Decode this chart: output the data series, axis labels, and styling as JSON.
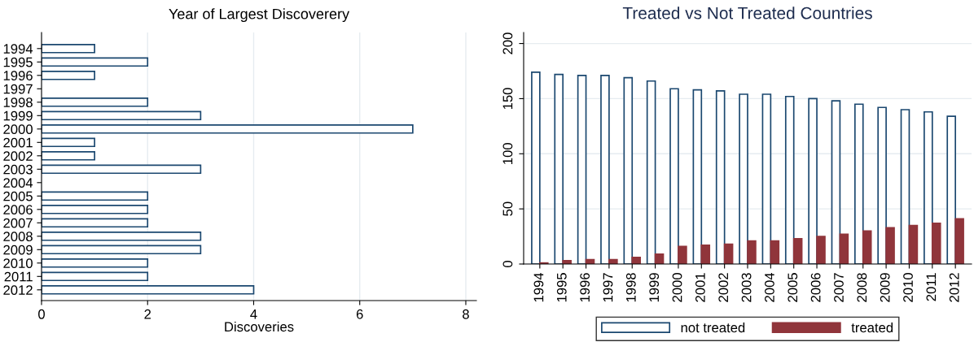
{
  "chart_data": [
    {
      "type": "bar",
      "orientation": "horizontal",
      "title": "Year of Largest Discoverery",
      "xlabel": "Discoveries",
      "categories": [
        "1994",
        "1995",
        "1996",
        "1997",
        "1998",
        "1999",
        "2000",
        "2001",
        "2002",
        "2003",
        "2004",
        "2005",
        "2006",
        "2007",
        "2008",
        "2009",
        "2010",
        "2011",
        "2012"
      ],
      "series": [
        {
          "color": "#1a476f",
          "values": [
            1,
            2,
            1,
            null,
            2,
            3,
            7,
            1,
            1,
            3,
            null,
            2,
            2,
            2,
            3,
            3,
            2,
            2,
            4
          ]
        }
      ],
      "xlim": [
        0,
        8.2
      ],
      "xticks": [
        0,
        2,
        4,
        6,
        8
      ],
      "grid": "x",
      "legend": false
    },
    {
      "type": "bar",
      "title": "Treated vs Not Treated Countries",
      "categories": [
        "1994",
        "1995",
        "1996",
        "1997",
        "1998",
        "1999",
        "2000",
        "2001",
        "2002",
        "2003",
        "2004",
        "2005",
        "2006",
        "2007",
        "2008",
        "2009",
        "2010",
        "2011",
        "2012"
      ],
      "series": [
        {
          "name": "not treated",
          "color": "#1a476f",
          "values": [
            174,
            172,
            171,
            171,
            169,
            166,
            159,
            158,
            157,
            154,
            154,
            152,
            150,
            148,
            145,
            142,
            140,
            138,
            134
          ]
        },
        {
          "name": "treated",
          "color": "#90353b",
          "values": [
            1,
            3,
            4,
            4,
            6,
            9,
            16,
            17,
            18,
            21,
            21,
            23,
            25,
            27,
            30,
            33,
            35,
            37,
            41
          ]
        }
      ],
      "ylim": [
        0,
        210
      ],
      "yticks": [
        0,
        50,
        100,
        150,
        200
      ],
      "grid": "y",
      "legend": "bottom"
    }
  ]
}
